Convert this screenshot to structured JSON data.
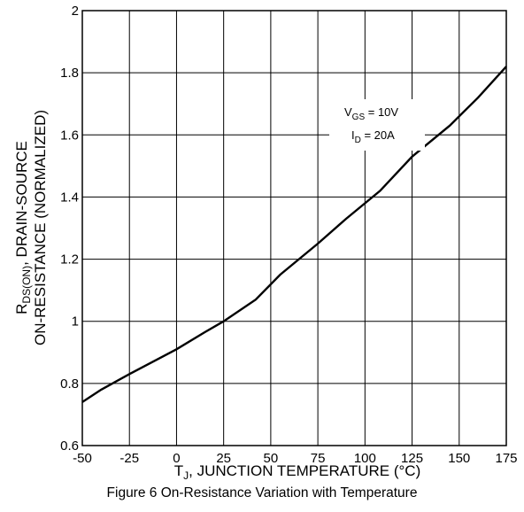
{
  "chart_data": {
    "type": "line",
    "xlabel_prefix": "T",
    "xlabel_sub": "J",
    "xlabel_main": ", JUNCTION TEMPERATURE (°C)",
    "ylabel_line1_prefix": "R",
    "ylabel_line1_sub": "DS(ON)",
    "ylabel_line1_main": ", DRAIN-SOURCE",
    "ylabel_line2": "ON-RESISTANCE (NORMALIZED)",
    "xlim": [
      -50,
      175
    ],
    "ylim": [
      0.6,
      2
    ],
    "x_ticks": [
      "-50",
      "-25",
      "0",
      "25",
      "50",
      "75",
      "100",
      "125",
      "150",
      "175"
    ],
    "y_ticks": [
      "0.6",
      "0.8",
      "1",
      "1.2",
      "1.4",
      "1.6",
      "1.8",
      "2"
    ],
    "grid": true,
    "annotations": [
      {
        "prefix": "V",
        "sub": "GS",
        "value": " = 10V"
      },
      {
        "prefix": "I",
        "sub": "D",
        "value": " = 20A"
      }
    ],
    "series": [
      {
        "x": [
          -50,
          -40,
          -25,
          0,
          15,
          25,
          42,
          55,
          75,
          90,
          108,
          125,
          145,
          160,
          175
        ],
        "y": [
          0.74,
          0.78,
          0.83,
          0.91,
          0.965,
          1.0,
          1.07,
          1.15,
          1.25,
          1.33,
          1.42,
          1.53,
          1.63,
          1.72,
          1.82
        ]
      }
    ]
  },
  "caption": "Figure 6 On-Resistance Variation with Temperature"
}
